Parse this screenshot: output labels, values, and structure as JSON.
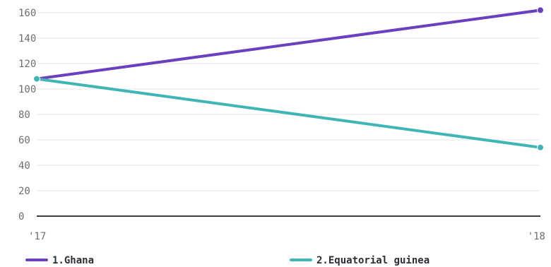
{
  "chart_data": {
    "type": "line",
    "x": [
      "'17",
      "'18"
    ],
    "ylim": [
      0,
      160
    ],
    "yticks": [
      0,
      20,
      40,
      60,
      80,
      100,
      120,
      140,
      160
    ],
    "grid": true,
    "legend_position": "bottom",
    "series": [
      {
        "name": "1.Ghana",
        "values": [
          108,
          162
        ],
        "color": "#6a3fc0"
      },
      {
        "name": "2.Equatorial guinea",
        "values": [
          108,
          54
        ],
        "color": "#3fb6b5"
      }
    ]
  }
}
